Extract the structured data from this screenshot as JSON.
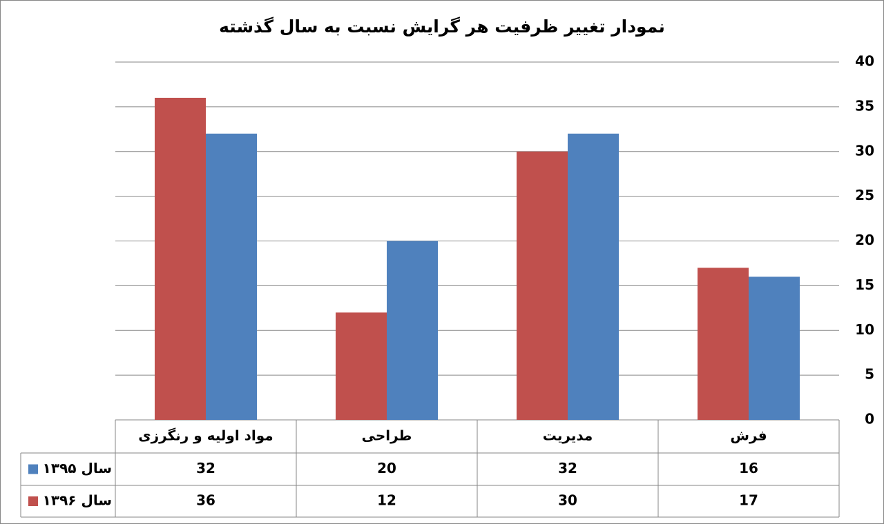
{
  "chart_data": {
    "type": "bar",
    "title": "نمودار تغییر ظرفیت هر گرایش نسبت به سال گذشته",
    "categories": [
      "فرش",
      "مدیریت",
      "طراحی",
      "مواد اولیه و رنگرزی"
    ],
    "series": [
      {
        "name": "سال ۱۳۹۵",
        "color": "#4f81bd",
        "values": [
          16,
          32,
          20,
          32
        ]
      },
      {
        "name": "سال ۱۳۹۶",
        "color": "#c0504d",
        "values": [
          17,
          30,
          12,
          36
        ]
      }
    ],
    "ylim": [
      0,
      40
    ],
    "yticks": [
      0,
      5,
      10,
      15,
      20,
      25,
      30,
      35,
      40
    ],
    "grid": true,
    "direction": "rtl"
  }
}
